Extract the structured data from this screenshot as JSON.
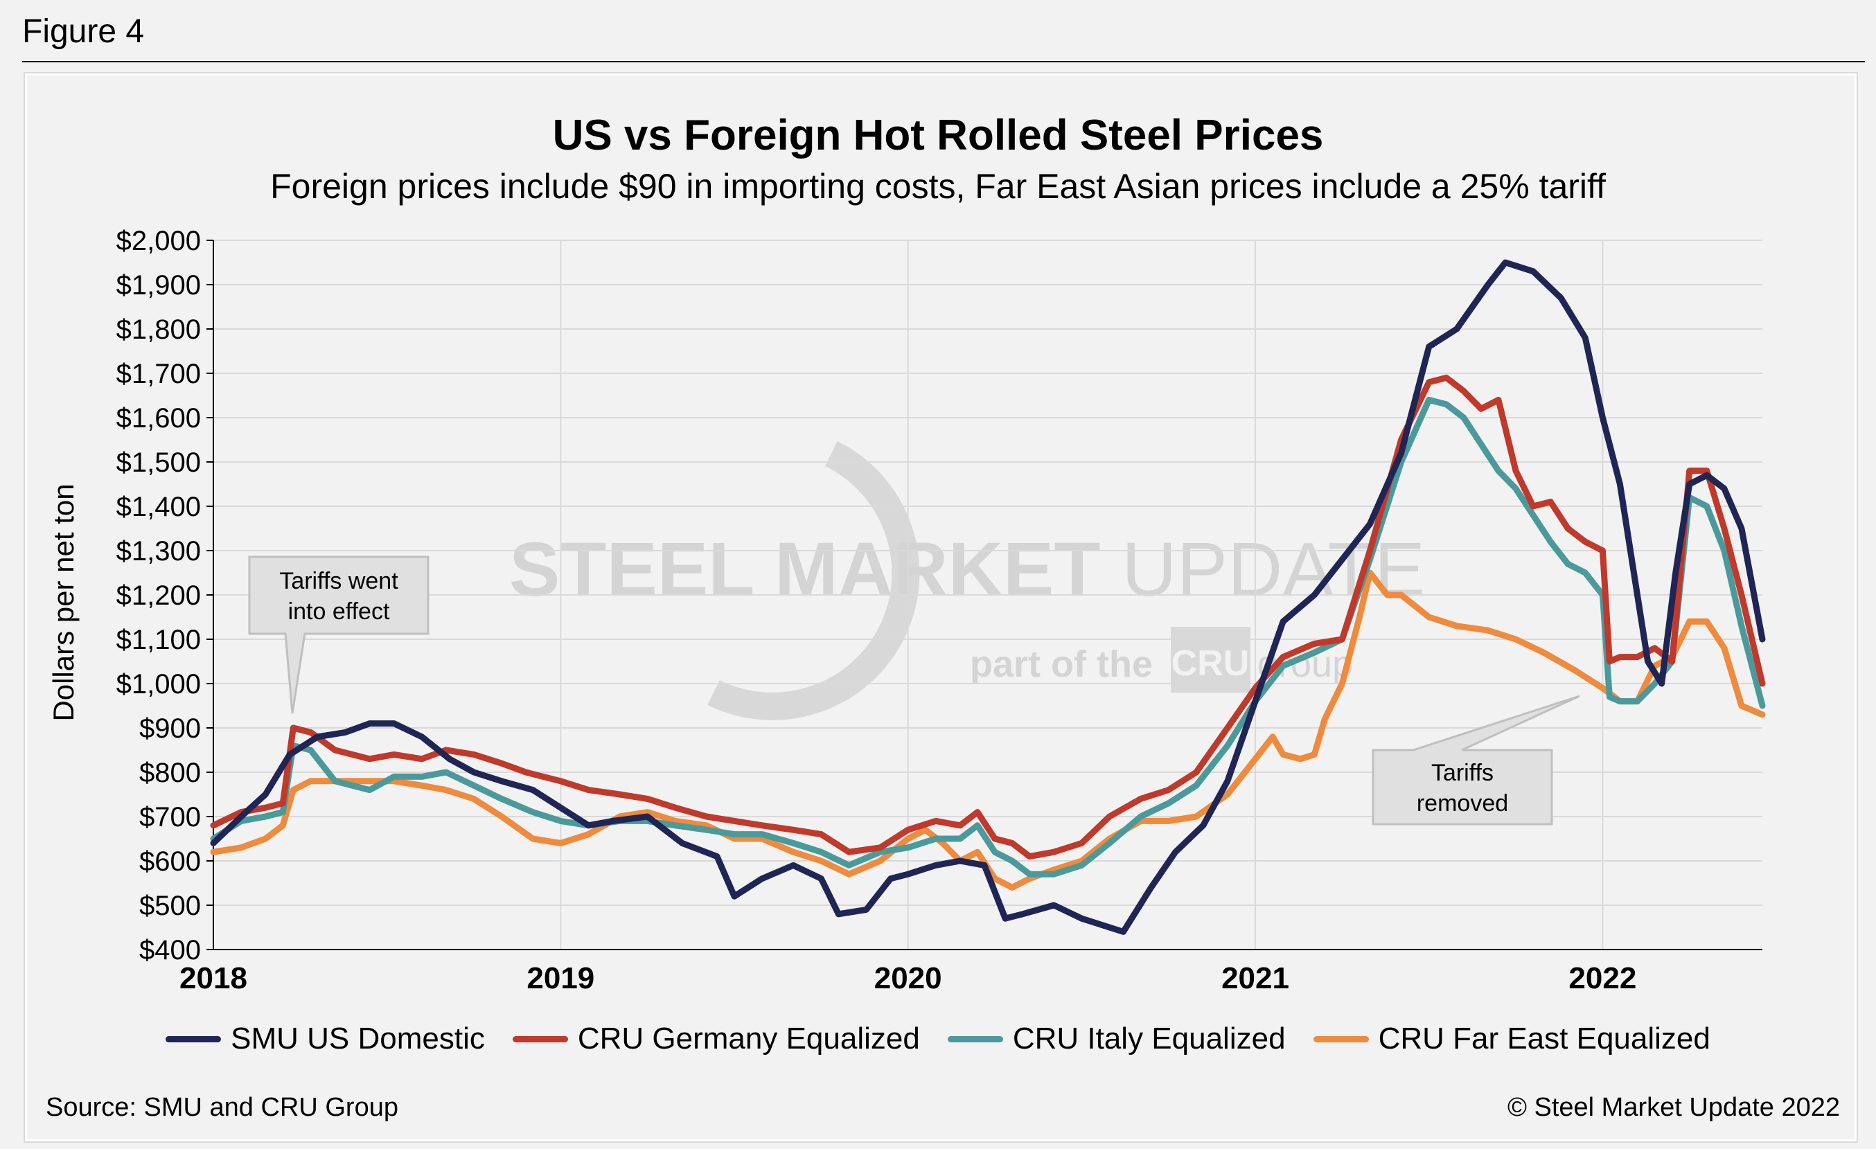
{
  "figure_label": "Figure 4",
  "watermark": {
    "line1_bold": "STEEL MARKET",
    "line1_light": "UPDATE",
    "line2": "part of the",
    "line2_logo": "CRU",
    "line2_end": "group"
  },
  "source": "Source: SMU and CRU Group",
  "copyright": "© Steel Market Update 2022",
  "chart_data": {
    "type": "line",
    "title": "US vs Foreign Hot Rolled Steel Prices",
    "subtitle": "Foreign prices include $90 in importing costs, Far East Asian prices include a 25% tariff",
    "xlabel": "",
    "ylabel": "Dollars per net ton",
    "xlim": [
      2018.0,
      2022.46
    ],
    "ylim": [
      400,
      2000
    ],
    "x_ticks": [
      2018,
      2019,
      2020,
      2021,
      2022
    ],
    "x_tick_labels": [
      "2018",
      "2019",
      "2020",
      "2021",
      "2022"
    ],
    "y_ticks": [
      400,
      500,
      600,
      700,
      800,
      900,
      1000,
      1100,
      1200,
      1300,
      1400,
      1500,
      1600,
      1700,
      1800,
      1900,
      2000
    ],
    "y_tick_labels": [
      "$400",
      "$500",
      "$600",
      "$700",
      "$800",
      "$900",
      "$1,000",
      "$1,100",
      "$1,200",
      "$1,300",
      "$1,400",
      "$1,500",
      "$1,600",
      "$1,700",
      "$1,800",
      "$1,900",
      "$2,000"
    ],
    "grid": true,
    "legend_position": "bottom",
    "series": [
      {
        "name": "SMU US Domestic",
        "color": "#1f2554",
        "x": [
          2018.0,
          2018.08,
          2018.15,
          2018.22,
          2018.3,
          2018.38,
          2018.45,
          2018.52,
          2018.6,
          2018.68,
          2018.75,
          2018.83,
          2018.92,
          2019.0,
          2019.08,
          2019.15,
          2019.25,
          2019.35,
          2019.45,
          2019.5,
          2019.58,
          2019.67,
          2019.75,
          2019.8,
          2019.88,
          2019.95,
          2020.0,
          2020.08,
          2020.15,
          2020.22,
          2020.28,
          2020.33,
          2020.42,
          2020.5,
          2020.58,
          2020.62,
          2020.7,
          2020.77,
          2020.85,
          2020.92,
          2021.0,
          2021.08,
          2021.17,
          2021.25,
          2021.33,
          2021.42,
          2021.5,
          2021.58,
          2021.67,
          2021.72,
          2021.8,
          2021.88,
          2021.95,
          2022.0,
          2022.05,
          2022.1,
          2022.13,
          2022.17,
          2022.21,
          2022.25,
          2022.3,
          2022.35,
          2022.4,
          2022.46
        ],
        "values": [
          640,
          700,
          750,
          840,
          880,
          890,
          910,
          910,
          880,
          830,
          800,
          780,
          760,
          720,
          680,
          690,
          700,
          640,
          610,
          520,
          560,
          590,
          560,
          480,
          490,
          560,
          570,
          590,
          600,
          590,
          470,
          480,
          500,
          470,
          450,
          440,
          540,
          620,
          680,
          780,
          960,
          1140,
          1200,
          1280,
          1360,
          1520,
          1760,
          1800,
          1900,
          1950,
          1930,
          1870,
          1780,
          1600,
          1450,
          1200,
          1050,
          1000,
          1250,
          1450,
          1470,
          1440,
          1350,
          1100
        ]
      },
      {
        "name": "CRU Germany Equalized",
        "color": "#c0392b",
        "x": [
          2018.0,
          2018.08,
          2018.15,
          2018.2,
          2018.23,
          2018.28,
          2018.35,
          2018.45,
          2018.52,
          2018.6,
          2018.67,
          2018.75,
          2018.83,
          2018.9,
          2019.0,
          2019.08,
          2019.17,
          2019.25,
          2019.33,
          2019.42,
          2019.5,
          2019.58,
          2019.67,
          2019.75,
          2019.83,
          2019.92,
          2020.0,
          2020.08,
          2020.15,
          2020.2,
          2020.25,
          2020.3,
          2020.35,
          2020.42,
          2020.5,
          2020.58,
          2020.67,
          2020.75,
          2020.83,
          2020.92,
          2021.0,
          2021.08,
          2021.17,
          2021.25,
          2021.33,
          2021.42,
          2021.5,
          2021.55,
          2021.6,
          2021.65,
          2021.7,
          2021.75,
          2021.8,
          2021.85,
          2021.9,
          2021.95,
          2022.0,
          2022.02,
          2022.05,
          2022.1,
          2022.15,
          2022.2,
          2022.25,
          2022.3,
          2022.35,
          2022.4,
          2022.46
        ],
        "values": [
          680,
          710,
          720,
          730,
          900,
          890,
          850,
          830,
          840,
          830,
          850,
          840,
          820,
          800,
          780,
          760,
          750,
          740,
          720,
          700,
          690,
          680,
          670,
          660,
          620,
          630,
          670,
          690,
          680,
          710,
          650,
          640,
          610,
          620,
          640,
          700,
          740,
          760,
          800,
          900,
          990,
          1060,
          1090,
          1100,
          1300,
          1550,
          1680,
          1690,
          1660,
          1620,
          1640,
          1480,
          1400,
          1410,
          1350,
          1320,
          1300,
          1050,
          1060,
          1060,
          1080,
          1050,
          1480,
          1480,
          1350,
          1200,
          1000
        ]
      },
      {
        "name": "CRU Italy Equalized",
        "color": "#4a9a9c",
        "x": [
          2018.0,
          2018.08,
          2018.15,
          2018.2,
          2018.23,
          2018.28,
          2018.35,
          2018.45,
          2018.52,
          2018.6,
          2018.67,
          2018.75,
          2018.83,
          2018.92,
          2019.0,
          2019.08,
          2019.17,
          2019.25,
          2019.33,
          2019.42,
          2019.5,
          2019.58,
          2019.67,
          2019.75,
          2019.83,
          2019.92,
          2020.0,
          2020.08,
          2020.15,
          2020.2,
          2020.25,
          2020.3,
          2020.35,
          2020.42,
          2020.5,
          2020.58,
          2020.67,
          2020.75,
          2020.83,
          2020.92,
          2021.0,
          2021.08,
          2021.17,
          2021.25,
          2021.33,
          2021.42,
          2021.5,
          2021.55,
          2021.6,
          2021.65,
          2021.7,
          2021.75,
          2021.8,
          2021.85,
          2021.9,
          2021.95,
          2022.0,
          2022.02,
          2022.05,
          2022.1,
          2022.15,
          2022.2,
          2022.25,
          2022.3,
          2022.35,
          2022.4,
          2022.46
        ],
        "values": [
          650,
          690,
          700,
          710,
          860,
          850,
          780,
          760,
          790,
          790,
          800,
          770,
          740,
          710,
          690,
          680,
          690,
          690,
          680,
          670,
          660,
          660,
          640,
          620,
          590,
          620,
          630,
          650,
          650,
          680,
          620,
          600,
          570,
          570,
          590,
          640,
          700,
          730,
          770,
          860,
          960,
          1040,
          1070,
          1100,
          1280,
          1500,
          1640,
          1630,
          1600,
          1540,
          1480,
          1440,
          1380,
          1320,
          1270,
          1250,
          1200,
          970,
          960,
          960,
          1000,
          1050,
          1420,
          1400,
          1300,
          1130,
          950
        ]
      },
      {
        "name": "CRU Far East Equalized",
        "color": "#f08a3c",
        "x": [
          2018.0,
          2018.08,
          2018.15,
          2018.2,
          2018.23,
          2018.28,
          2018.35,
          2018.45,
          2018.52,
          2018.6,
          2018.67,
          2018.75,
          2018.83,
          2018.92,
          2019.0,
          2019.08,
          2019.17,
          2019.25,
          2019.33,
          2019.42,
          2019.5,
          2019.58,
          2019.67,
          2019.75,
          2019.83,
          2019.92,
          2020.0,
          2020.05,
          2020.1,
          2020.15,
          2020.2,
          2020.25,
          2020.3,
          2020.35,
          2020.42,
          2020.5,
          2020.58,
          2020.67,
          2020.75,
          2020.83,
          2020.92,
          2021.0,
          2021.05,
          2021.08,
          2021.13,
          2021.17,
          2021.2,
          2021.25,
          2021.3,
          2021.33,
          2021.38,
          2021.42,
          2021.5,
          2021.58,
          2021.67,
          2021.75,
          2021.83,
          2021.92,
          2022.0,
          2022.05,
          2022.1,
          2022.15,
          2022.2,
          2022.25,
          2022.3,
          2022.35,
          2022.4,
          2022.46
        ],
        "values": [
          620,
          630,
          650,
          680,
          760,
          780,
          780,
          780,
          780,
          770,
          760,
          740,
          700,
          650,
          640,
          660,
          700,
          710,
          690,
          680,
          650,
          650,
          620,
          600,
          570,
          600,
          650,
          670,
          640,
          600,
          620,
          560,
          540,
          560,
          580,
          600,
          650,
          690,
          690,
          700,
          750,
          830,
          880,
          840,
          830,
          840,
          920,
          1000,
          1150,
          1250,
          1200,
          1200,
          1150,
          1130,
          1120,
          1100,
          1070,
          1030,
          990,
          960,
          960,
          1040,
          1060,
          1140,
          1140,
          1080,
          950,
          930
        ]
      }
    ],
    "annotations": [
      {
        "text": "Tariffs went into effect",
        "x": 2018.23,
        "y": 900
      },
      {
        "text": "Tariffs removed",
        "x": 2022.0,
        "y": 990
      }
    ]
  }
}
